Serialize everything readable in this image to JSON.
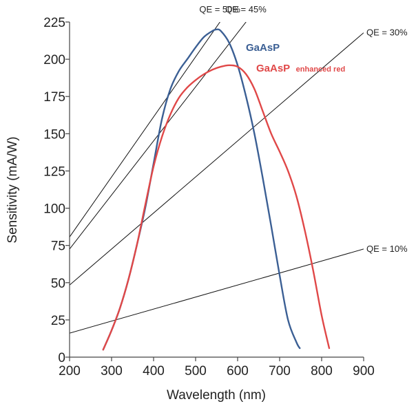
{
  "chart_data": {
    "type": "line",
    "title": "",
    "xlabel": "Wavelength (nm)",
    "ylabel": "Sensitivity (mA/W)",
    "xlim": [
      200,
      900
    ],
    "ylim": [
      0,
      225
    ],
    "xticks": [
      200,
      300,
      400,
      500,
      600,
      700,
      800,
      900
    ],
    "yticks": [
      0,
      25,
      50,
      75,
      100,
      125,
      150,
      175,
      200,
      225
    ],
    "grid": false,
    "series": [
      {
        "name": "GaAsP",
        "color": "#3b5f94",
        "x": [
          280,
          300,
          320,
          340,
          360,
          380,
          400,
          420,
          440,
          460,
          480,
          500,
          520,
          540,
          550,
          560,
          580,
          600,
          620,
          640,
          660,
          680,
          700,
          720,
          740,
          748
        ],
        "y": [
          5,
          18,
          33,
          52,
          75,
          100,
          130,
          160,
          180,
          192,
          200,
          208,
          215,
          219,
          220,
          219,
          211,
          196,
          175,
          150,
          120,
          88,
          55,
          25,
          10,
          6
        ]
      },
      {
        "name": "GaAsP",
        "label_suffix": "enhanced red",
        "color": "#e04848",
        "x": [
          280,
          300,
          320,
          340,
          360,
          380,
          400,
          420,
          440,
          460,
          480,
          500,
          520,
          540,
          560,
          580,
          600,
          620,
          640,
          660,
          680,
          700,
          720,
          740,
          760,
          780,
          800,
          818
        ],
        "y": [
          5,
          18,
          33,
          52,
          75,
          102,
          128,
          148,
          163,
          174,
          181,
          186,
          190,
          193,
          195,
          196,
          195,
          190,
          180,
          165,
          150,
          138,
          125,
          108,
          85,
          58,
          28,
          6
        ]
      }
    ],
    "reference_lines": [
      {
        "label": "QE = 50%",
        "qe": 50
      },
      {
        "label": "QE = 45%",
        "qe": 45
      },
      {
        "label": "QE = 30%",
        "qe": 30
      },
      {
        "label": "QE = 10%",
        "qe": 10
      }
    ]
  }
}
